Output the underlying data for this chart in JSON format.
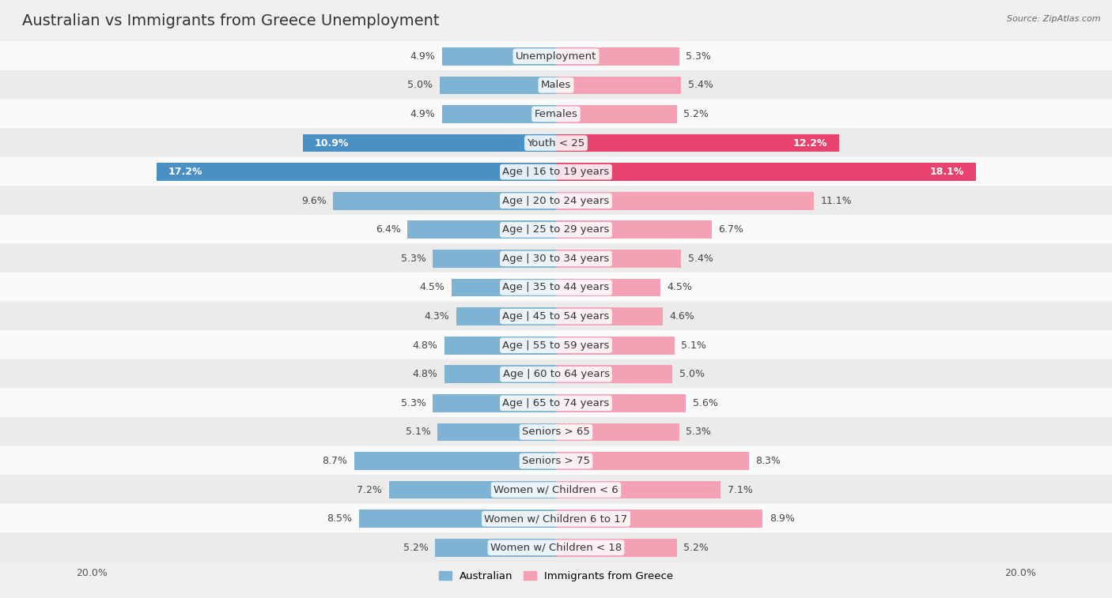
{
  "title": "Australian vs Immigrants from Greece Unemployment",
  "source": "Source: ZipAtlas.com",
  "categories": [
    "Unemployment",
    "Males",
    "Females",
    "Youth < 25",
    "Age | 16 to 19 years",
    "Age | 20 to 24 years",
    "Age | 25 to 29 years",
    "Age | 30 to 34 years",
    "Age | 35 to 44 years",
    "Age | 45 to 54 years",
    "Age | 55 to 59 years",
    "Age | 60 to 64 years",
    "Age | 65 to 74 years",
    "Seniors > 65",
    "Seniors > 75",
    "Women w/ Children < 6",
    "Women w/ Children 6 to 17",
    "Women w/ Children < 18"
  ],
  "australian": [
    4.9,
    5.0,
    4.9,
    10.9,
    17.2,
    9.6,
    6.4,
    5.3,
    4.5,
    4.3,
    4.8,
    4.8,
    5.3,
    5.1,
    8.7,
    7.2,
    8.5,
    5.2
  ],
  "immigrants": [
    5.3,
    5.4,
    5.2,
    12.2,
    18.1,
    11.1,
    6.7,
    5.4,
    4.5,
    4.6,
    5.1,
    5.0,
    5.6,
    5.3,
    8.3,
    7.1,
    8.9,
    5.2
  ],
  "australian_color": "#7fb3d3",
  "immigrants_color": "#f4a0b5",
  "highlight_aus_color": "#4a90c4",
  "highlight_imm_color": "#e8436e",
  "background_color": "#f0f0f0",
  "row_color_odd": "#fafafa",
  "row_color_even": "#ebebeb",
  "max_val": 20.0,
  "legend_australian": "Australian",
  "legend_immigrants": "Immigrants from Greece",
  "title_fontsize": 14,
  "label_fontsize": 9.5,
  "value_fontsize": 9,
  "bar_height": 0.62,
  "highlight_rows": [
    3,
    4
  ]
}
